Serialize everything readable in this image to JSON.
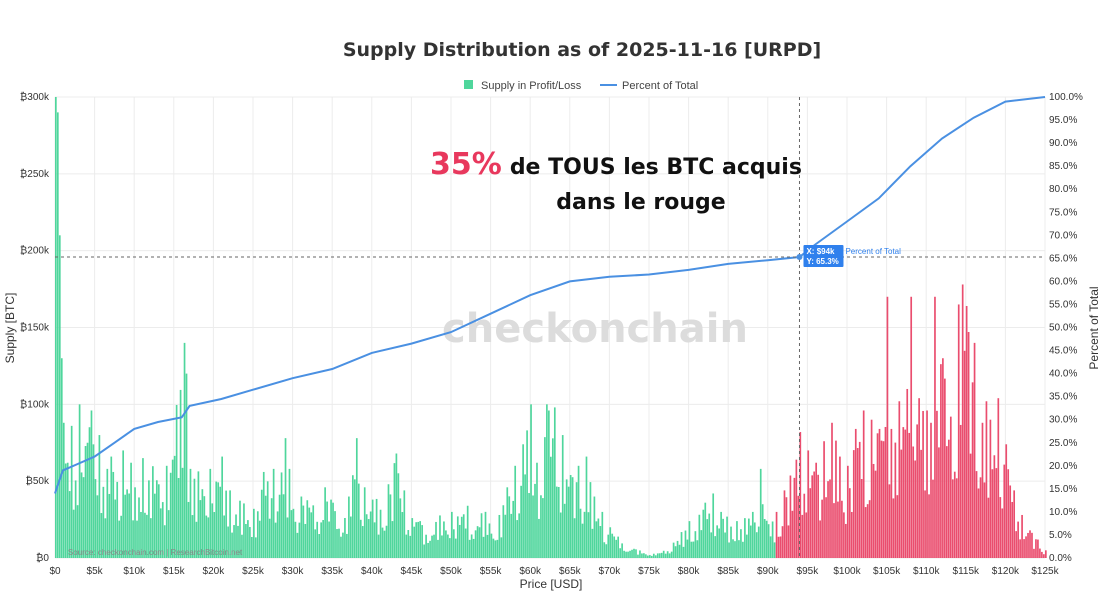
{
  "chart_data": {
    "type": "bar",
    "title": "Supply Distribution as of 2025-11-16 [URPD]",
    "xlabel": "Price [USD]",
    "ylabel": "Supply [BTC]",
    "y2label": "Percent of Total",
    "xlim": [
      0,
      125000
    ],
    "ylim": [
      0,
      300000
    ],
    "y2lim": [
      0,
      100
    ],
    "x_ticks": [
      0,
      5000,
      10000,
      15000,
      20000,
      25000,
      30000,
      35000,
      40000,
      45000,
      50000,
      55000,
      60000,
      65000,
      70000,
      75000,
      80000,
      85000,
      90000,
      95000,
      100000,
      105000,
      110000,
      115000,
      120000,
      125000
    ],
    "x_tick_labels": [
      "$0",
      "$5k",
      "$10k",
      "$15k",
      "$20k",
      "$25k",
      "$30k",
      "$35k",
      "$40k",
      "$45k",
      "$50k",
      "$55k",
      "$60k",
      "$65k",
      "$70k",
      "$75k",
      "$80k",
      "$85k",
      "$90k",
      "$95k",
      "$100k",
      "$105k",
      "$110k",
      "$115k",
      "$120k",
      "$125k"
    ],
    "y_ticks": [
      0,
      50000,
      100000,
      150000,
      200000,
      250000,
      300000
    ],
    "y_tick_labels": [
      "₿0",
      "₿50k",
      "₿100k",
      "₿150k",
      "₿200k",
      "₿250k",
      "₿300k"
    ],
    "y2_ticks": [
      0,
      5,
      10,
      15,
      20,
      25,
      30,
      35,
      40,
      45,
      50,
      55,
      60,
      65,
      70,
      75,
      80,
      85,
      90,
      95,
      100
    ],
    "y2_tick_labels": [
      "0.0%",
      "5.0%",
      "10.0%",
      "15.0%",
      "20.0%",
      "25.0%",
      "30.0%",
      "35.0%",
      "40.0%",
      "45.0%",
      "50.0%",
      "55.0%",
      "60.0%",
      "65.0%",
      "70.0%",
      "75.0%",
      "80.0%",
      "85.0%",
      "90.0%",
      "95.0%",
      "100.0%"
    ],
    "legend": [
      {
        "name": "Supply in Profit/Loss",
        "color": "#4fd69c",
        "kind": "box"
      },
      {
        "name": "Percent of Total",
        "color": "#4a90e2",
        "kind": "line"
      }
    ],
    "legend_position": "top-center",
    "current_price": 94000,
    "bar_width_usd": 250,
    "series": [
      {
        "name": "Supply in Profit/Loss",
        "profit_color": "#4fd69c",
        "loss_color": "#ea4d6e",
        "peaks": [
          {
            "x": 0,
            "y": 300000
          },
          {
            "x": 250,
            "y": 290000
          },
          {
            "x": 500,
            "y": 210000
          },
          {
            "x": 750,
            "y": 130000
          },
          {
            "x": 1000,
            "y": 88000
          },
          {
            "x": 1500,
            "y": 62000
          },
          {
            "x": 2000,
            "y": 86000
          },
          {
            "x": 3000,
            "y": 100000
          },
          {
            "x": 4000,
            "y": 75000
          },
          {
            "x": 4500,
            "y": 96000
          },
          {
            "x": 5500,
            "y": 80000
          },
          {
            "x": 6500,
            "y": 58000
          },
          {
            "x": 7000,
            "y": 66000
          },
          {
            "x": 8500,
            "y": 70000
          },
          {
            "x": 9500,
            "y": 62000
          },
          {
            "x": 10000,
            "y": 46000
          },
          {
            "x": 11000,
            "y": 65000
          },
          {
            "x": 14000,
            "y": 60000
          },
          {
            "x": 16250,
            "y": 140000
          },
          {
            "x": 16500,
            "y": 120000
          },
          {
            "x": 17000,
            "y": 58000
          },
          {
            "x": 19500,
            "y": 58000
          },
          {
            "x": 21000,
            "y": 66000
          },
          {
            "x": 22000,
            "y": 44000
          },
          {
            "x": 25000,
            "y": 32000
          },
          {
            "x": 26250,
            "y": 56000
          },
          {
            "x": 27500,
            "y": 58000
          },
          {
            "x": 29000,
            "y": 78000
          },
          {
            "x": 29500,
            "y": 58000
          },
          {
            "x": 31000,
            "y": 40000
          },
          {
            "x": 34000,
            "y": 46000
          },
          {
            "x": 35000,
            "y": 36000
          },
          {
            "x": 37000,
            "y": 40000
          },
          {
            "x": 38000,
            "y": 78000
          },
          {
            "x": 39000,
            "y": 46000
          },
          {
            "x": 40000,
            "y": 38000
          },
          {
            "x": 42000,
            "y": 48000
          },
          {
            "x": 43000,
            "y": 68000
          },
          {
            "x": 44000,
            "y": 44000
          },
          {
            "x": 46000,
            "y": 24000
          },
          {
            "x": 50000,
            "y": 30000
          },
          {
            "x": 52000,
            "y": 34000
          },
          {
            "x": 56000,
            "y": 28000
          },
          {
            "x": 57000,
            "y": 46000
          },
          {
            "x": 58000,
            "y": 60000
          },
          {
            "x": 59000,
            "y": 74000
          },
          {
            "x": 60000,
            "y": 100000
          },
          {
            "x": 60750,
            "y": 62000
          },
          {
            "x": 62000,
            "y": 100000
          },
          {
            "x": 63000,
            "y": 98000
          },
          {
            "x": 64000,
            "y": 80000
          },
          {
            "x": 65000,
            "y": 54000
          },
          {
            "x": 66000,
            "y": 60000
          },
          {
            "x": 67000,
            "y": 66000
          },
          {
            "x": 68000,
            "y": 40000
          },
          {
            "x": 69000,
            "y": 30000
          },
          {
            "x": 70000,
            "y": 20000
          },
          {
            "x": 73000,
            "y": 6000
          },
          {
            "x": 76000,
            "y": 3000
          },
          {
            "x": 78000,
            "y": 10000
          },
          {
            "x": 80000,
            "y": 24000
          },
          {
            "x": 82000,
            "y": 36000
          },
          {
            "x": 83000,
            "y": 42000
          },
          {
            "x": 84000,
            "y": 30000
          },
          {
            "x": 86000,
            "y": 24000
          },
          {
            "x": 88000,
            "y": 30000
          },
          {
            "x": 89000,
            "y": 58000
          },
          {
            "x": 90000,
            "y": 22000
          },
          {
            "x": 91000,
            "y": 30000
          },
          {
            "x": 92000,
            "y": 44000
          },
          {
            "x": 93500,
            "y": 64000
          },
          {
            "x": 94000,
            "y": 82000
          },
          {
            "x": 95000,
            "y": 70000
          },
          {
            "x": 96000,
            "y": 62000
          },
          {
            "x": 97000,
            "y": 76000
          },
          {
            "x": 98000,
            "y": 88000
          },
          {
            "x": 99000,
            "y": 66000
          },
          {
            "x": 100000,
            "y": 60000
          },
          {
            "x": 101000,
            "y": 84000
          },
          {
            "x": 102000,
            "y": 96000
          },
          {
            "x": 103000,
            "y": 90000
          },
          {
            "x": 104000,
            "y": 84000
          },
          {
            "x": 104500,
            "y": 76000
          },
          {
            "x": 105000,
            "y": 170000
          },
          {
            "x": 105500,
            "y": 84000
          },
          {
            "x": 106500,
            "y": 102000
          },
          {
            "x": 107500,
            "y": 110000
          },
          {
            "x": 108000,
            "y": 170000
          },
          {
            "x": 109000,
            "y": 104000
          },
          {
            "x": 110000,
            "y": 96000
          },
          {
            "x": 110500,
            "y": 88000
          },
          {
            "x": 111000,
            "y": 170000
          },
          {
            "x": 112000,
            "y": 130000
          },
          {
            "x": 113000,
            "y": 92000
          },
          {
            "x": 114000,
            "y": 165000
          },
          {
            "x": 114500,
            "y": 178000
          },
          {
            "x": 115000,
            "y": 164000
          },
          {
            "x": 116000,
            "y": 140000
          },
          {
            "x": 117000,
            "y": 88000
          },
          {
            "x": 117500,
            "y": 102000
          },
          {
            "x": 118000,
            "y": 90000
          },
          {
            "x": 119000,
            "y": 104000
          },
          {
            "x": 120000,
            "y": 74000
          },
          {
            "x": 121000,
            "y": 44000
          },
          {
            "x": 122000,
            "y": 28000
          },
          {
            "x": 123000,
            "y": 18000
          },
          {
            "x": 124000,
            "y": 12000
          },
          {
            "x": 125000,
            "y": 5000
          }
        ]
      },
      {
        "name": "Percent of Total",
        "color": "#4a90e2",
        "axis": "right",
        "points": [
          {
            "x": 0,
            "y": 14
          },
          {
            "x": 1000,
            "y": 19
          },
          {
            "x": 3000,
            "y": 20.5
          },
          {
            "x": 5000,
            "y": 22
          },
          {
            "x": 7500,
            "y": 25
          },
          {
            "x": 10000,
            "y": 28
          },
          {
            "x": 13000,
            "y": 29.5
          },
          {
            "x": 16000,
            "y": 30.5
          },
          {
            "x": 17000,
            "y": 33
          },
          {
            "x": 21000,
            "y": 34.5
          },
          {
            "x": 25000,
            "y": 36.5
          },
          {
            "x": 30000,
            "y": 39
          },
          {
            "x": 35000,
            "y": 41
          },
          {
            "x": 40000,
            "y": 44.5
          },
          {
            "x": 45000,
            "y": 46.5
          },
          {
            "x": 50000,
            "y": 49
          },
          {
            "x": 55000,
            "y": 53
          },
          {
            "x": 60000,
            "y": 57
          },
          {
            "x": 65000,
            "y": 60
          },
          {
            "x": 70000,
            "y": 61
          },
          {
            "x": 75000,
            "y": 61.5
          },
          {
            "x": 80000,
            "y": 62.5
          },
          {
            "x": 85000,
            "y": 63.8
          },
          {
            "x": 90000,
            "y": 64.6
          },
          {
            "x": 94000,
            "y": 65.3
          },
          {
            "x": 96000,
            "y": 68
          },
          {
            "x": 100000,
            "y": 73
          },
          {
            "x": 104000,
            "y": 78
          },
          {
            "x": 108000,
            "y": 85
          },
          {
            "x": 112000,
            "y": 91
          },
          {
            "x": 116000,
            "y": 95.5
          },
          {
            "x": 120000,
            "y": 99
          },
          {
            "x": 125000,
            "y": 100
          }
        ]
      }
    ],
    "tooltip": {
      "x_text": "X: $94k",
      "y_text": "Y: 65.3%",
      "series_label": "Percent of Total"
    },
    "annotation": {
      "percent": "35%",
      "line1_rest": "de TOUS les BTC acquis",
      "line2": "dans le rouge"
    },
    "watermark": "checkonchain",
    "source": "Source: checkonchain.com | ResearchBitcoin.net"
  }
}
